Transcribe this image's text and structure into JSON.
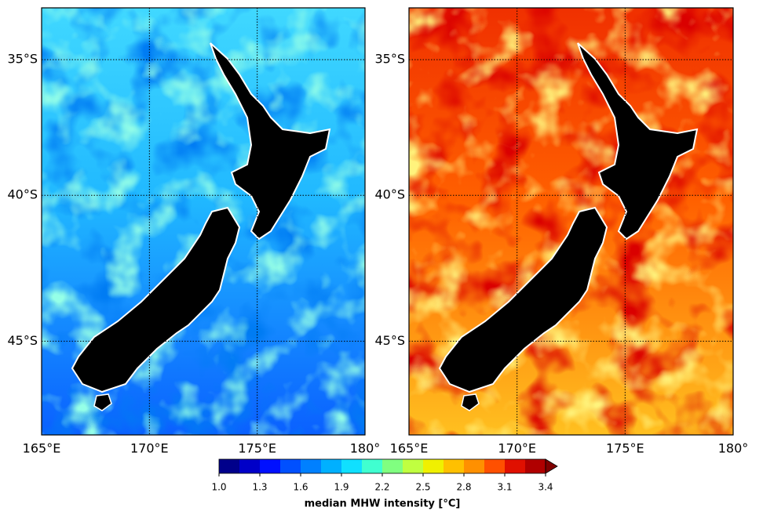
{
  "maps": [
    {
      "xlim": [
        165,
        180
      ],
      "ylim": [
        -48,
        -33
      ],
      "xticks": [
        {
          "value": 165,
          "label": "165°E"
        },
        {
          "value": 170,
          "label": "170°E"
        },
        {
          "value": 175,
          "label": "175°E"
        },
        {
          "value": 180,
          "label": "180°"
        }
      ],
      "yticks": [
        {
          "value": -35,
          "label": "35°S"
        },
        {
          "value": -40,
          "label": "40°S"
        },
        {
          "value": -45,
          "label": "45°S"
        }
      ]
    },
    {
      "xlim": [
        165,
        180
      ],
      "ylim": [
        -48,
        -33
      ],
      "xticks": [
        {
          "value": 165,
          "label": "165°E"
        },
        {
          "value": 170,
          "label": "170°E"
        },
        {
          "value": 175,
          "label": "175°E"
        },
        {
          "value": 180,
          "label": "180°"
        }
      ],
      "yticks": [
        {
          "value": -35,
          "label": "35°S"
        },
        {
          "value": -40,
          "label": "40°S"
        },
        {
          "value": -45,
          "label": "45°S"
        }
      ]
    }
  ],
  "colorbar": {
    "label": "median MHW intensity [°C]",
    "lim": [
      1,
      3.4
    ],
    "ticks": [
      {
        "value": 1,
        "label": "1.0"
      },
      1.3,
      1.6,
      1.9,
      2.2,
      2.5,
      2.8,
      3.1,
      3.4
    ],
    "colors": [
      "#00008b",
      "#0000c8",
      "#0010ff",
      "#0050ff",
      "#0080ff",
      "#00b0ff",
      "#10e0ff",
      "#40ffd0",
      "#80ff80",
      "#c0ff40",
      "#f0f000",
      "#ffc000",
      "#ff9000",
      "#ff5000",
      "#e01000",
      "#b00000"
    ],
    "extend_color": "#800000"
  }
}
